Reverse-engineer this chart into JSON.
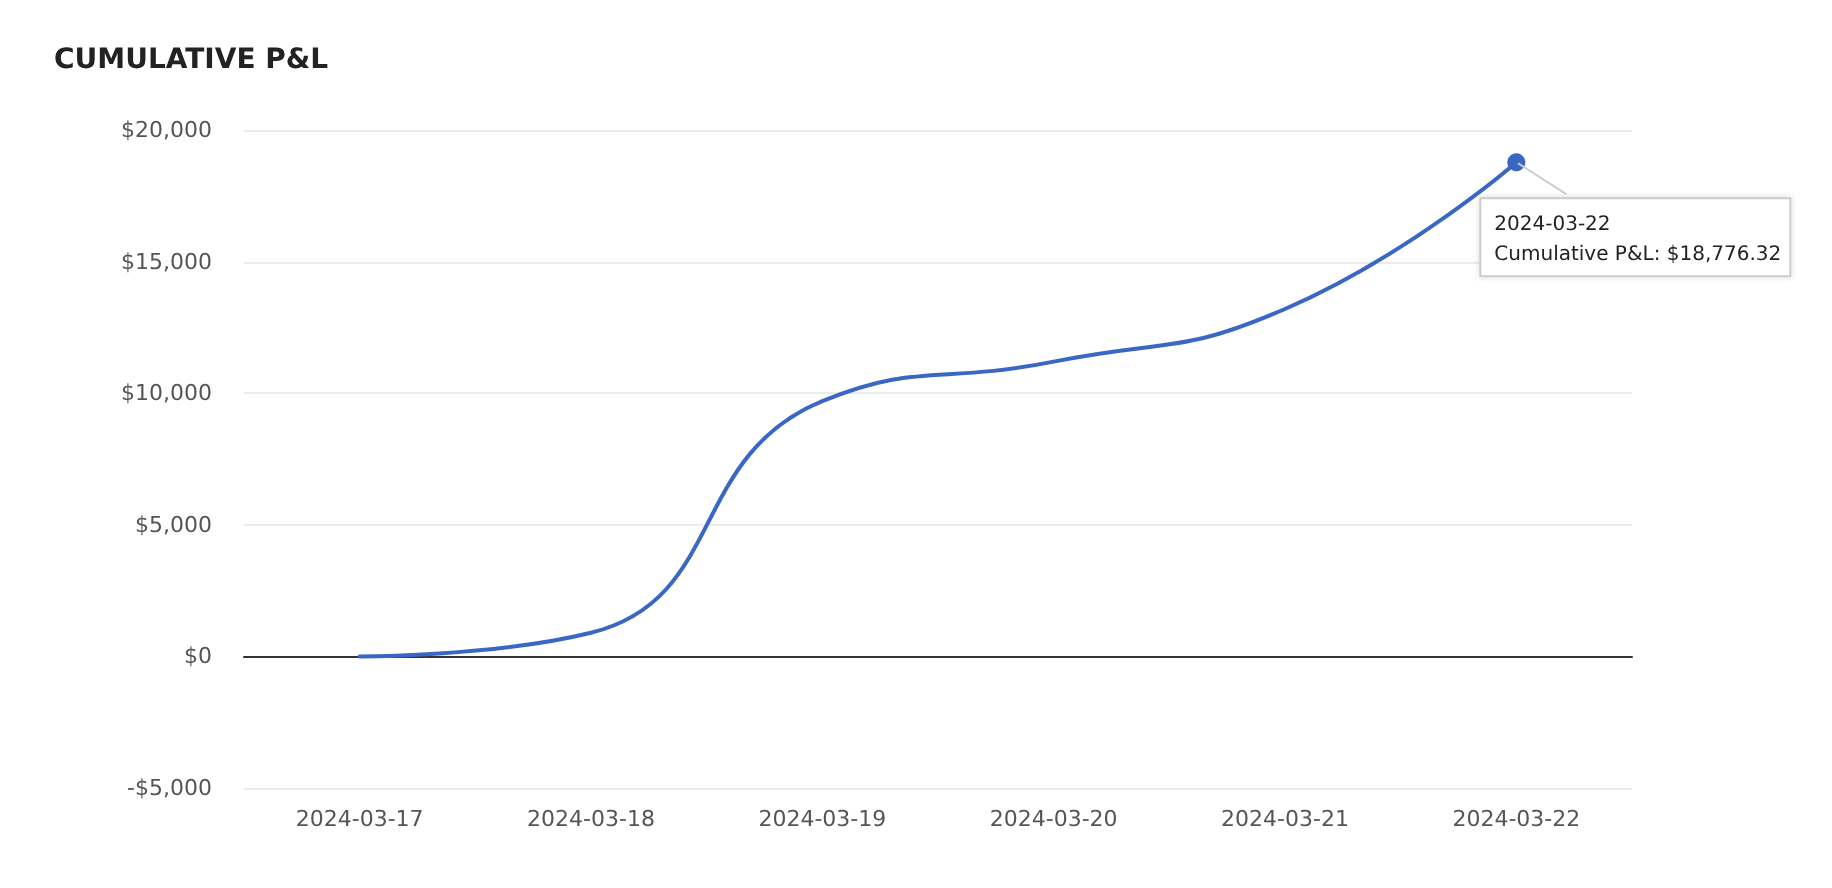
{
  "chart_data": {
    "type": "line",
    "title": "CUMULATIVE P&L",
    "categories": [
      "2024-03-17",
      "2024-03-18",
      "2024-03-19",
      "2024-03-20",
      "2024-03-21",
      "2024-03-22"
    ],
    "series": [
      {
        "color": "#3a66c4",
        "values": [
          0,
          900,
          9700,
          11200,
          13200,
          18776.32
        ]
      }
    ],
    "ylim": [
      -5000,
      20000
    ],
    "yticks": [
      {
        "value": -5000,
        "label": "-$5,000"
      },
      {
        "value": 0,
        "label": "$0"
      },
      {
        "value": 5000,
        "label": "$5,000"
      },
      {
        "value": 10000,
        "label": "$10,000"
      },
      {
        "value": 15000,
        "label": "$15,000"
      },
      {
        "value": 20000,
        "label": "$20,000"
      }
    ],
    "grid": "y",
    "marker": "none",
    "line_style": "solid",
    "annotations": [
      {
        "text": "2024-03-22\nCumulative P&L: $18,776.32",
        "x": "2024-03-22",
        "y": 18776.32
      }
    ]
  }
}
